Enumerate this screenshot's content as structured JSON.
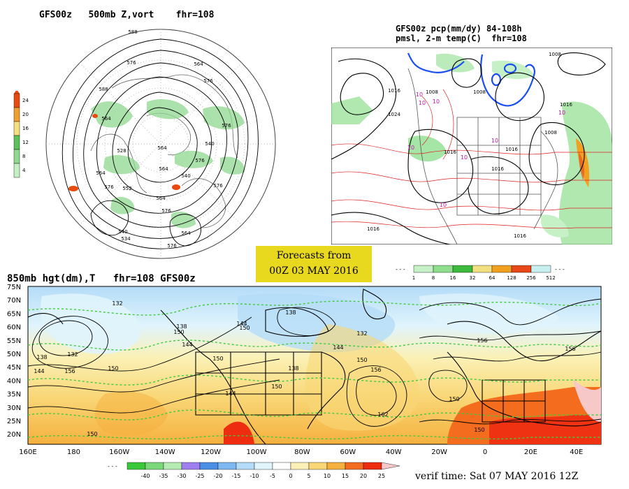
{
  "titles": {
    "vort": "GFS00z   500mb Z,vort    fhr=108",
    "pcp_line1": "GFS00z pcp(mm/dy) 84-108h",
    "pcp_line2": "pmsl, 2-m temp(C)  fhr=108",
    "t850": "850mb hgt(dm),T   fhr=108 GFS00z"
  },
  "forecast_badge": {
    "line1": "Forecasts from",
    "line2": "00Z 03 MAY 2016"
  },
  "verif_time": "verif time: Sat 07 MAY 2016 12Z",
  "vort_scale": {
    "ticks": [
      "24",
      "20",
      "16",
      "12",
      "8",
      "4"
    ],
    "colors": [
      "#e84a10",
      "#f0a030",
      "#f6de80",
      "#5ec05a",
      "#90d890",
      "#c4eec4"
    ]
  },
  "pcp_scale": {
    "ticks": [
      "1",
      "8",
      "16",
      "32",
      "64",
      "128",
      "256",
      "512"
    ],
    "colors": [
      "#c6f0c6",
      "#8ede8e",
      "#3cba3c",
      "#f2e080",
      "#f2a020",
      "#e84818",
      "#c8f0f0"
    ]
  },
  "temp_scale": {
    "ticks": [
      "-40",
      "-35",
      "-30",
      "-25",
      "-20",
      "-15",
      "-10",
      "-5",
      "0",
      "5",
      "10",
      "15",
      "20",
      "25"
    ],
    "colors": [
      "#39c83a",
      "#7ad87a",
      "#b4ecb4",
      "#9f7ff0",
      "#4a8ee6",
      "#7eb8f0",
      "#b4dcf8",
      "#e0f4fc",
      "#ffffff",
      "#fbf1b6",
      "#f9d777",
      "#f6b03e",
      "#f46c1e",
      "#ee2c10",
      "#f7c8c8"
    ]
  },
  "vort_labels": [
    "588",
    "576",
    "564",
    "576",
    "588",
    "576",
    "564",
    "540",
    "528",
    "564",
    "540",
    "576",
    "552",
    "564",
    "576",
    "564",
    "576",
    "576",
    "534",
    "540",
    "564",
    "564",
    "576"
  ],
  "pcp_labels": [
    "1008",
    "1016",
    "1024",
    "1008",
    "1008",
    "1016",
    "1016",
    "1016",
    "1016",
    "1008",
    "1016",
    "1016"
  ],
  "pcp_temp_labels": [
    "10",
    "10",
    "10",
    "10",
    "10",
    "10",
    "10",
    "10"
  ],
  "t850_labels": [
    "132",
    "138",
    "132",
    "144",
    "150",
    "144",
    "150",
    "156",
    "138",
    "144",
    "150",
    "132",
    "138",
    "144",
    "150",
    "156",
    "150",
    "162",
    "144",
    "156",
    "150",
    "138",
    "150",
    "156",
    "150",
    "150"
  ],
  "lat_labels": [
    "75N",
    "70N",
    "65N",
    "60N",
    "55N",
    "50N",
    "45N",
    "40N",
    "35N",
    "30N",
    "25N",
    "20N"
  ],
  "lon_labels": [
    "160E",
    "180",
    "160W",
    "140W",
    "120W",
    "100W",
    "80W",
    "60W",
    "40W",
    "20W",
    "0",
    "20E",
    "40E"
  ]
}
